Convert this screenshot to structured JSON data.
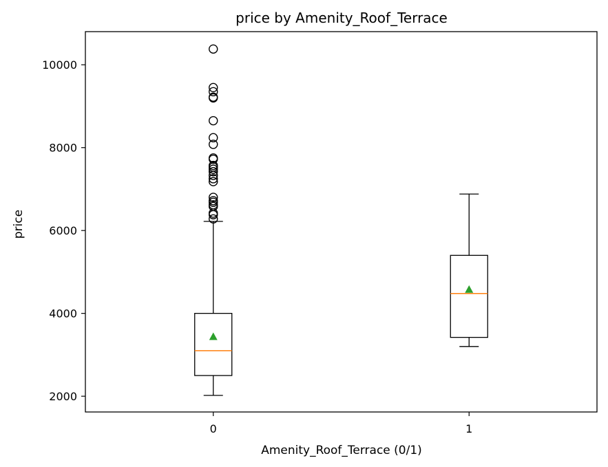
{
  "chart_data": {
    "type": "box",
    "title": "price by Amenity_Roof_Terrace",
    "xlabel": "Amenity_Roof_Terrace (0/1)",
    "ylabel": "price",
    "categories": [
      "0",
      "1"
    ],
    "yticks": [
      2000,
      4000,
      6000,
      8000,
      10000
    ],
    "ylim": [
      1620,
      10800
    ],
    "grid": false,
    "boxes": [
      {
        "category": "0",
        "whisker_low": 2020,
        "q1": 2500,
        "median": 3100,
        "q3": 4000,
        "whisker_high": 6220,
        "mean": 3440,
        "outliers": [
          6280,
          6380,
          6420,
          6580,
          6620,
          6680,
          6720,
          6800,
          7180,
          7250,
          7330,
          7420,
          7480,
          7530,
          7570,
          7720,
          7750,
          8080,
          8240,
          8650,
          9200,
          9220,
          9350,
          9450,
          10380
        ]
      },
      {
        "category": "1",
        "whisker_low": 3200,
        "q1": 3420,
        "median": 4480,
        "q3": 5400,
        "whisker_high": 6880,
        "mean": 4580,
        "outliers": []
      }
    ],
    "colors": {
      "box": "#000000",
      "median": "#ff7f0e",
      "mean": "#2ca02c"
    }
  }
}
